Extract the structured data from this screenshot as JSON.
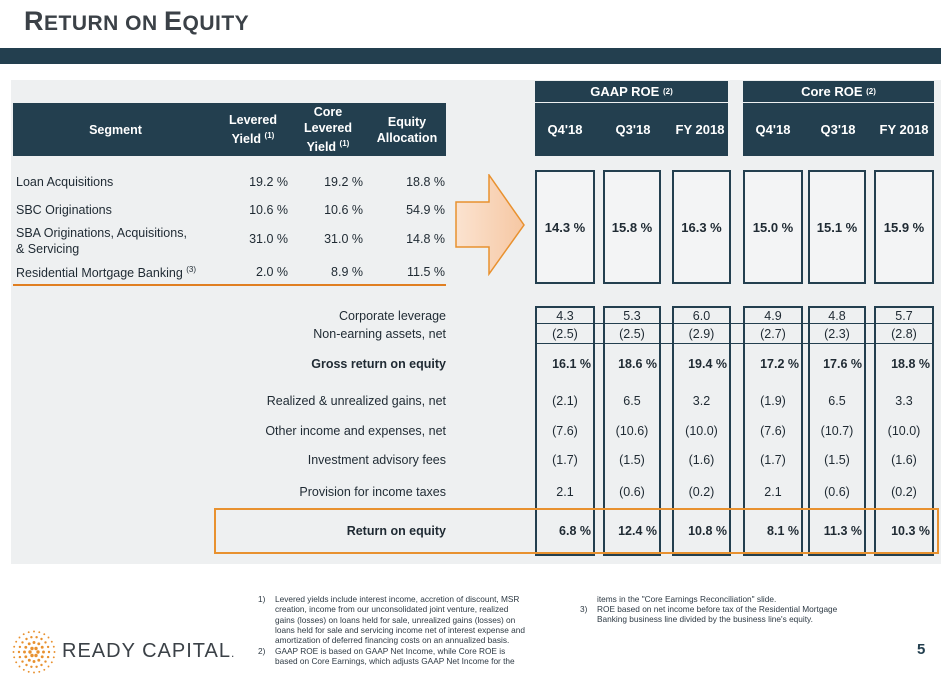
{
  "page": {
    "title_first_big": "R",
    "title_first_rest": "ETURN ON ",
    "title_second_big": "E",
    "title_second_rest": "QUITY",
    "page_number": "5"
  },
  "brand": {
    "name": "READY CAPITAL",
    "mark": ".",
    "navy": "#233f4f",
    "orange": "#e8912f"
  },
  "segment_table": {
    "headers": {
      "segment": "Segment",
      "levered_line1": "Levered",
      "levered_line2": "Yield",
      "levered_sup": "(1)",
      "core_line1": "Core",
      "core_line2": "Levered",
      "core_line3": "Yield",
      "core_sup": "(1)",
      "equity_line1": "Equity",
      "equity_line2": "Allocation"
    },
    "rows": [
      {
        "segment": "Loan Acquisitions",
        "levered": "19.2 %",
        "core": "19.2 %",
        "equity": "18.8 %"
      },
      {
        "segment": "SBC Originations",
        "levered": "10.6 %",
        "core": "10.6 %",
        "equity": "54.9 %"
      },
      {
        "segment_line1": "SBA Originations, Acquisitions,",
        "segment_line2": "& Servicing",
        "levered": "31.0 %",
        "core": "31.0 %",
        "equity": "14.8 %"
      },
      {
        "segment": "Residential Mortgage Banking",
        "segment_sup": "(3)",
        "levered": "2.0 %",
        "core": "8.9 %",
        "equity": "11.5 %"
      }
    ]
  },
  "roe": {
    "gaap_header": "GAAP ROE",
    "gaap_sup": "(2)",
    "core_header": "Core ROE",
    "core_sup": "(2)",
    "columns": [
      "Q4'18",
      "Q3'18",
      "FY 2018",
      "Q4'18",
      "Q3'18",
      "FY 2018"
    ],
    "segment_roe": [
      "14.3 %",
      "15.8 %",
      "16.3 %",
      "15.0 %",
      "15.1 %",
      "15.9 %"
    ],
    "lines": [
      {
        "label": "Corporate leverage",
        "values": [
          "4.3",
          "5.3",
          "6.0",
          "4.9",
          "4.8",
          "5.7"
        ]
      },
      {
        "label": "Non-earning assets, net",
        "values": [
          "(2.5)",
          "(2.5)",
          "(2.9)",
          "(2.7)",
          "(2.3)",
          "(2.8)"
        ]
      },
      {
        "label": "Gross return on equity",
        "values": [
          "16.1 %",
          "18.6 %",
          "19.4 %",
          "17.2 %",
          "17.6 %",
          "18.8 %"
        ]
      },
      {
        "label": "Realized & unrealized gains, net",
        "values": [
          "(2.1)",
          "6.5",
          "3.2",
          "(1.9)",
          "6.5",
          "3.3"
        ]
      },
      {
        "label": "Other income and expenses, net",
        "values": [
          "(7.6)",
          "(10.6)",
          "(10.0)",
          "(7.6)",
          "(10.7)",
          "(10.0)"
        ]
      },
      {
        "label": "Investment advisory fees",
        "values": [
          "(1.7)",
          "(1.5)",
          "(1.6)",
          "(1.7)",
          "(1.5)",
          "(1.6)"
        ]
      },
      {
        "label": "Provision for income taxes",
        "values": [
          "2.1",
          "(0.6)",
          "(0.2)",
          "2.1",
          "(0.6)",
          "(0.2)"
        ]
      },
      {
        "label": "Return on equity",
        "values": [
          "6.8 %",
          "12.4 %",
          "10.8 %",
          "8.1 %",
          "11.3 %",
          "10.3 %"
        ]
      }
    ]
  },
  "footnotes": {
    "n1": "1)",
    "f1_lines": [
      "Levered yields include interest income, accretion of discount, MSR",
      "creation, income from our unconsolidated joint venture, realized",
      "gains (losses) on loans held for sale, unrealized gains (losses) on",
      "loans held for sale and servicing income net of interest expense and",
      "amortization of deferred financing costs on an annualized basis."
    ],
    "n2": "2)",
    "f2_lines": [
      "GAAP ROE is based on GAAP Net Income, while Core ROE is",
      "based on Core Earnings, which adjusts GAAP Net Income for the"
    ],
    "f2_cont": "items in the \"Core Earnings Reconciliation\" slide.",
    "n3": "3)",
    "f3_lines": [
      "ROE based on net income before tax of the Residential Mortgage",
      "Banking business line divided by the business line's equity."
    ]
  }
}
